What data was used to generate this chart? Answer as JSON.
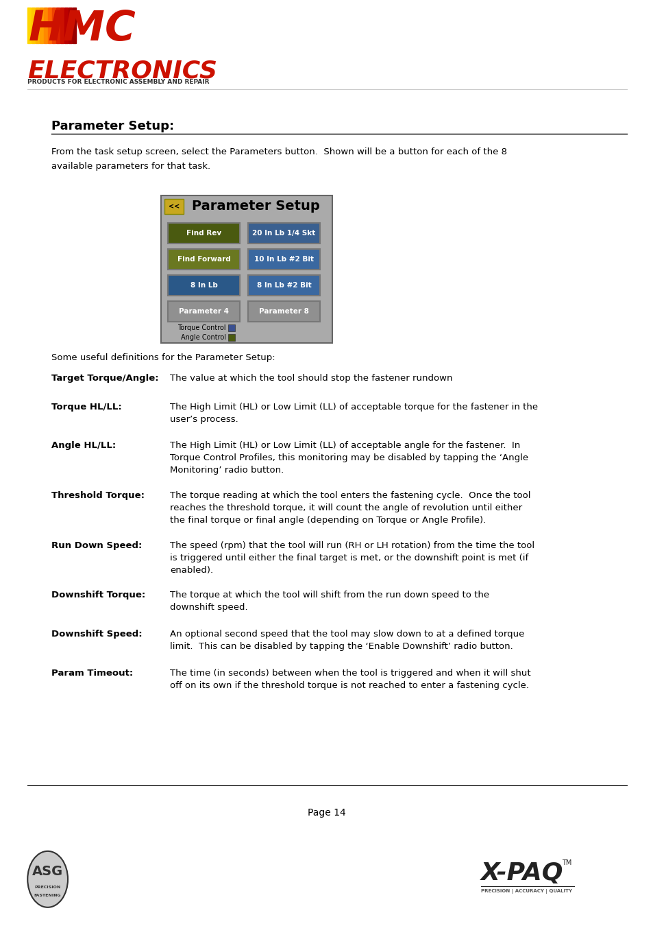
{
  "title": "Parameter Setup:",
  "intro_text": "From the task setup screen, select the Parameters button.  Shown will be a button for each of the 8\navailable parameters for that task.",
  "definitions_intro": "Some useful definitions for the Parameter Setup:",
  "definitions": [
    {
      "term": "Target Torque/Angle:",
      "definition": "The value at which the tool should stop the fastener rundown",
      "lines": 1
    },
    {
      "term": "Torque HL/LL:",
      "definition": "The High Limit (HL) or Low Limit (LL) of acceptable torque for the fastener in the\nuser’s process.",
      "lines": 2
    },
    {
      "term": "Angle HL/LL:",
      "definition": "The High Limit (HL) or Low Limit (LL) of acceptable angle for the fastener.  In\nTorque Control Profiles, this monitoring may be disabled by tapping the ‘Angle\nMonitoring’ radio button.",
      "lines": 3
    },
    {
      "term": "Threshold Torque:",
      "definition": "The torque reading at which the tool enters the fastening cycle.  Once the tool\nreaches the threshold torque, it will count the angle of revolution until either\nthe final torque or final angle (depending on Torque or Angle Profile).",
      "lines": 3
    },
    {
      "term": "Run Down Speed:",
      "definition": "The speed (rpm) that the tool will run (RH or LH rotation) from the time the tool\nis triggered until either the final target is met, or the downshift point is met (if\nenabled).",
      "lines": 3
    },
    {
      "term": "Downshift Torque:",
      "definition": "The torque at which the tool will shift from the run down speed to the\ndownshift speed.",
      "lines": 2
    },
    {
      "term": "Downshift Speed:",
      "definition": "An optional second speed that the tool may slow down to at a defined torque\nlimit.  This can be disabled by tapping the ‘Enable Downshift’ radio button.",
      "lines": 2
    },
    {
      "term": "Param Timeout:",
      "definition": "The time (in seconds) between when the tool is triggered and when it will shut\noff on its own if the threshold torque is not reached to enter a fastening cycle.",
      "lines": 2
    }
  ],
  "page_number": "Page 14",
  "panel_bg": "#aaaaaa",
  "panel_title": "Parameter Setup",
  "back_btn_color": "#c8a820",
  "back_btn_text": "<<",
  "buttons": [
    {
      "label": "Find Rev",
      "color": "#4a5a10",
      "col": 0,
      "row": 0
    },
    {
      "label": "20 In Lb 1/4 Skt",
      "color": "#3a6090",
      "col": 1,
      "row": 0
    },
    {
      "label": "Find Forward",
      "color": "#6a7820",
      "col": 0,
      "row": 1
    },
    {
      "label": "10 In Lb #2 Bit",
      "color": "#3a68a0",
      "col": 1,
      "row": 1
    },
    {
      "label": "8 In Lb",
      "color": "#2a5888",
      "col": 0,
      "row": 2
    },
    {
      "label": "8 In Lb #2 Bit",
      "color": "#3a68a0",
      "col": 1,
      "row": 2
    },
    {
      "label": "Parameter 4",
      "color": "#909090",
      "col": 0,
      "row": 3
    },
    {
      "label": "Parameter 8",
      "color": "#909090",
      "col": 1,
      "row": 3
    }
  ],
  "torque_control_color": "#3a5090",
  "angle_control_color": "#4a5a10",
  "bg_color": "#ffffff",
  "text_color": "#000000"
}
